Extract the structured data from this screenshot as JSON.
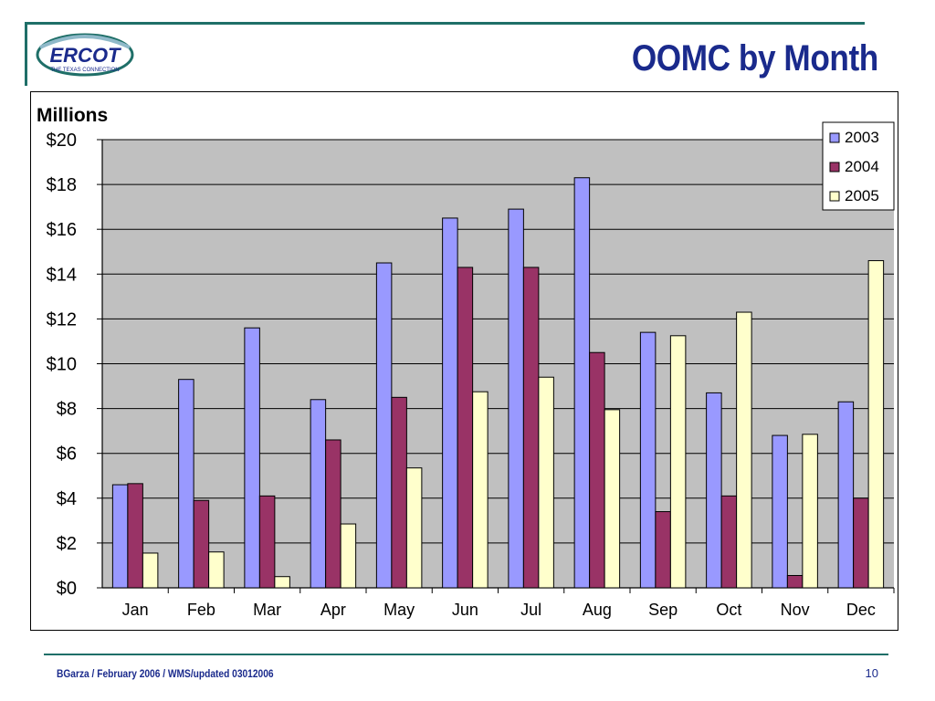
{
  "slide": {
    "title": "OOMC by Month",
    "footer": "BGarza / February 2006 / WMS/updated 03012006",
    "page_number": "10",
    "logo_text": "ERCOT",
    "logo_subtext": "THE TEXAS CONNECTION"
  },
  "chart_data": {
    "type": "bar",
    "ylabel": "Millions",
    "categories": [
      "Jan",
      "Feb",
      "Mar",
      "Apr",
      "May",
      "Jun",
      "Jul",
      "Aug",
      "Sep",
      "Oct",
      "Nov",
      "Dec"
    ],
    "series": [
      {
        "name": "2003",
        "color": "#9999ff",
        "values": [
          4.6,
          9.3,
          11.6,
          8.4,
          14.5,
          16.5,
          16.9,
          18.3,
          11.4,
          8.7,
          6.8,
          8.3
        ]
      },
      {
        "name": "2004",
        "color": "#993366",
        "values": [
          4.65,
          3.9,
          4.1,
          6.6,
          8.5,
          14.3,
          14.3,
          10.5,
          3.4,
          4.1,
          0.55,
          4.0
        ]
      },
      {
        "name": "2005",
        "color": "#ffffcc",
        "values": [
          1.55,
          1.6,
          0.5,
          2.85,
          5.35,
          8.75,
          9.4,
          7.95,
          11.25,
          12.3,
          6.85,
          14.6
        ]
      }
    ],
    "ylim": [
      0,
      20
    ],
    "yticks": [
      "$0",
      "$2",
      "$4",
      "$6",
      "$8",
      "$10",
      "$12",
      "$14",
      "$16",
      "$18",
      "$20"
    ],
    "grid": true,
    "legend_position": "top-right",
    "plot_background": "#c0c0c0"
  }
}
